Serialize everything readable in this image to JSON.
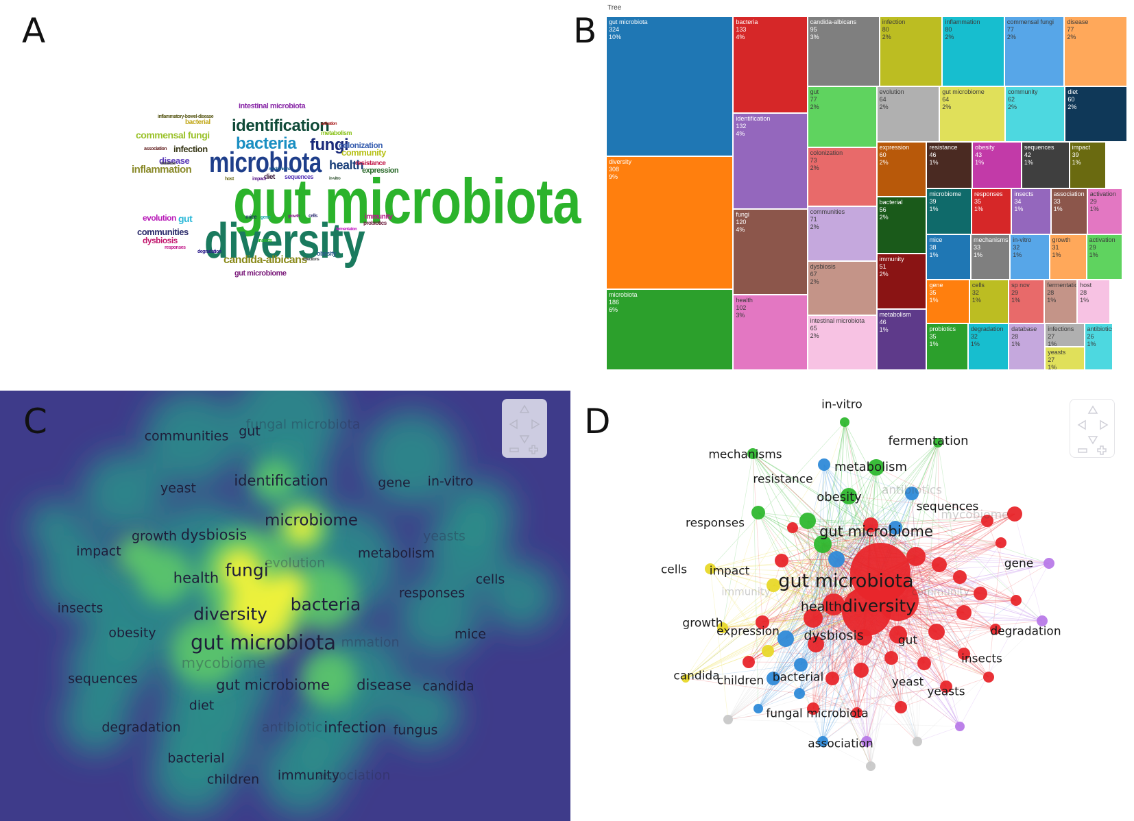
{
  "panels": {
    "a": "A",
    "b": "B",
    "c": "C",
    "d": "D"
  },
  "word_cloud": {
    "words": [
      {
        "text": "gut microbiota",
        "color": "#2bb32b"
      },
      {
        "text": "diversity",
        "color": "#1a7a5e"
      },
      {
        "text": "microbiota",
        "color": "#1e3e8a"
      },
      {
        "text": "identification",
        "color": "#0f4a38"
      },
      {
        "text": "bacteria",
        "color": "#1a8fc2"
      },
      {
        "text": "fungi",
        "color": "#1a2a7a"
      },
      {
        "text": "health",
        "color": "#1a3f7a"
      },
      {
        "text": "candida-albicans",
        "color": "#8a8a1a"
      },
      {
        "text": "intestinal microbiota",
        "color": "#8a2aa8"
      },
      {
        "text": "commensal fungi",
        "color": "#9bc22b"
      },
      {
        "text": "infection",
        "color": "#3a3a1a"
      },
      {
        "text": "colonization",
        "color": "#3a60b0"
      },
      {
        "text": "community",
        "color": "#b8c21a"
      },
      {
        "text": "disease",
        "color": "#5a3ab8"
      },
      {
        "text": "inflammation",
        "color": "#8a8a2a"
      },
      {
        "text": "communities",
        "color": "#2a2a6a"
      },
      {
        "text": "dysbiosis",
        "color": "#c2186e"
      },
      {
        "text": "evolution",
        "color": "#b81ab8"
      },
      {
        "text": "gut",
        "color": "#2ab8d8"
      },
      {
        "text": "expression",
        "color": "#2a6a2a"
      },
      {
        "text": "resistance",
        "color": "#c21a4a"
      },
      {
        "text": "gut microbiome",
        "color": "#7a1a7a"
      },
      {
        "text": "immunity",
        "color": "#b81a8a"
      },
      {
        "text": "bacterial",
        "color": "#c2a81a"
      },
      {
        "text": "diet",
        "color": "#3a1a3a"
      },
      {
        "text": "sequences",
        "color": "#5a3ab8"
      },
      {
        "text": "metabolism",
        "color": "#8ac21a"
      },
      {
        "text": "obesity",
        "color": "#2a5a8a"
      },
      {
        "text": "probiotics",
        "color": "#6a1a3a"
      },
      {
        "text": "inflammatory-bowel-disease",
        "color": "#5a5a1a"
      },
      {
        "text": "mice",
        "color": "#1a3a5a"
      },
      {
        "text": "impact",
        "color": "#5a1a8a"
      },
      {
        "text": "insects",
        "color": "#2ab82a"
      },
      {
        "text": "association",
        "color": "#6a2a2a"
      },
      {
        "text": "database",
        "color": "#3a3a3a"
      },
      {
        "text": "in-vitro",
        "color": "#3a5a3a"
      },
      {
        "text": "activation",
        "color": "#a81a1a"
      },
      {
        "text": "mechanisms",
        "color": "#1a5a8a"
      },
      {
        "text": "responses",
        "color": "#c21a8a"
      },
      {
        "text": "degradation",
        "color": "#2a1a8a"
      },
      {
        "text": "cells",
        "color": "#3a3a7a"
      },
      {
        "text": "gene",
        "color": "#1aa8a8"
      },
      {
        "text": "host",
        "color": "#6a6a1a"
      },
      {
        "text": "growth",
        "color": "#8a1a8a"
      },
      {
        "text": "infections",
        "color": "#4a4a4a"
      },
      {
        "text": "fermentation",
        "color": "#c21ac2"
      }
    ]
  },
  "treemap": {
    "title": "Tree",
    "items": [
      {
        "label": "gut microbiota",
        "count": "324",
        "pct": "10%",
        "color": "#1f77b4"
      },
      {
        "label": "diversity",
        "count": "308",
        "pct": "9%",
        "color": "#ff7f0e"
      },
      {
        "label": "microbiota",
        "count": "186",
        "pct": "6%",
        "color": "#2ca02c"
      },
      {
        "label": "bacteria",
        "count": "133",
        "pct": "4%",
        "color": "#d62728"
      },
      {
        "label": "identification",
        "count": "132",
        "pct": "4%",
        "color": "#9467bd"
      },
      {
        "label": "fungi",
        "count": "120",
        "pct": "4%",
        "color": "#8c564b"
      },
      {
        "label": "health",
        "count": "102",
        "pct": "3%",
        "color": "#e377c2"
      },
      {
        "label": "candida-albicans",
        "count": "95",
        "pct": "3%",
        "color": "#7f7f7f"
      },
      {
        "label": "infection",
        "count": "80",
        "pct": "2%",
        "color": "#bcbd22"
      },
      {
        "label": "inflammation",
        "count": "80",
        "pct": "2%",
        "color": "#17becf"
      },
      {
        "label": "commensal fungi",
        "count": "77",
        "pct": "2%",
        "color": "#57a6e8"
      },
      {
        "label": "disease",
        "count": "77",
        "pct": "2%",
        "color": "#ffa85a"
      },
      {
        "label": "gut",
        "count": "77",
        "pct": "2%",
        "color": "#5fd35f"
      },
      {
        "label": "evolution",
        "count": "64",
        "pct": "2%",
        "color": "#b0b0b0"
      },
      {
        "label": "gut microbiome",
        "count": "64",
        "pct": "2%",
        "color": "#e0e05a"
      },
      {
        "label": "community",
        "count": "62",
        "pct": "2%",
        "color": "#4dd8e0"
      },
      {
        "label": "diet",
        "count": "60",
        "pct": "2%",
        "color": "#0f3858"
      },
      {
        "label": "colonization",
        "count": "73",
        "pct": "2%",
        "color": "#e86a6a"
      },
      {
        "label": "communities",
        "count": "71",
        "pct": "2%",
        "color": "#c5a8dd"
      },
      {
        "label": "dysbiosis",
        "count": "67",
        "pct": "2%",
        "color": "#c49488"
      },
      {
        "label": "intestinal microbiota",
        "count": "65",
        "pct": "2%",
        "color": "#f7c2e3"
      },
      {
        "label": "expression",
        "count": "60",
        "pct": "2%",
        "color": "#b8590a"
      },
      {
        "label": "bacterial",
        "count": "56",
        "pct": "2%",
        "color": "#1a5a1a"
      },
      {
        "label": "immunity",
        "count": "51",
        "pct": "2%",
        "color": "#8a1414"
      },
      {
        "label": "metabolism",
        "count": "46",
        "pct": "1%",
        "color": "#5e3a8a"
      },
      {
        "label": "resistance",
        "count": "46",
        "pct": "1%",
        "color": "#4a2a22"
      },
      {
        "label": "obesity",
        "count": "43",
        "pct": "1%",
        "color": "#c23aa8"
      },
      {
        "label": "sequences",
        "count": "42",
        "pct": "1%",
        "color": "#3f3f3f"
      },
      {
        "label": "impact",
        "count": "39",
        "pct": "1%",
        "color": "#6a6a10"
      },
      {
        "label": "microbiome",
        "count": "39",
        "pct": "1%",
        "color": "#0f6a6a"
      },
      {
        "label": "responses",
        "count": "35",
        "pct": "1%",
        "color": "#d62728"
      },
      {
        "label": "insects",
        "count": "34",
        "pct": "1%",
        "color": "#9467bd"
      },
      {
        "label": "association",
        "count": "33",
        "pct": "1%",
        "color": "#8c564b"
      },
      {
        "label": "activation",
        "count": "29",
        "pct": "1%",
        "color": "#e377c2"
      },
      {
        "label": "mice",
        "count": "38",
        "pct": "1%",
        "color": "#1f77b4"
      },
      {
        "label": "mechanisms",
        "count": "33",
        "pct": "1%",
        "color": "#7f7f7f"
      },
      {
        "label": "in-vitro",
        "count": "32",
        "pct": "1%",
        "color": "#57a6e8"
      },
      {
        "label": "growth",
        "count": "31",
        "pct": "1%",
        "color": "#ffa85a"
      },
      {
        "label": "activation",
        "count": "29",
        "pct": "1%",
        "color": "#5fd35f"
      },
      {
        "label": "gene",
        "count": "35",
        "pct": "1%",
        "color": "#ff7f0e"
      },
      {
        "label": "cells",
        "count": "32",
        "pct": "1%",
        "color": "#bcbd22"
      },
      {
        "label": "sp nov",
        "count": "29",
        "pct": "1%",
        "color": "#e86a6a"
      },
      {
        "label": "fermentation",
        "count": "28",
        "pct": "1%",
        "color": "#c49488"
      },
      {
        "label": "host",
        "count": "28",
        "pct": "1%",
        "color": "#f7c2e3"
      },
      {
        "label": "probiotics",
        "count": "35",
        "pct": "1%",
        "color": "#2ca02c"
      },
      {
        "label": "degradation",
        "count": "32",
        "pct": "1%",
        "color": "#17becf"
      },
      {
        "label": "database",
        "count": "28",
        "pct": "1%",
        "color": "#c5a8dd"
      },
      {
        "label": "infections",
        "count": "27",
        "pct": "1%",
        "color": "#b0b0b0"
      },
      {
        "label": "yeasts",
        "count": "27",
        "pct": "1%",
        "color": "#e0e05a"
      },
      {
        "label": "antibiotics",
        "count": "26",
        "pct": "1%",
        "color": "#4dd8e0"
      }
    ]
  },
  "density_map": {
    "labels": [
      {
        "text": "communities",
        "faded": false
      },
      {
        "text": "gut",
        "faded": false
      },
      {
        "text": "fungal microbiota",
        "faded": true
      },
      {
        "text": "identification",
        "faded": false
      },
      {
        "text": "yeast",
        "faded": false
      },
      {
        "text": "gene",
        "faded": false
      },
      {
        "text": "in-vitro",
        "faded": false
      },
      {
        "text": "microbiome",
        "faded": false
      },
      {
        "text": "growth",
        "faded": false
      },
      {
        "text": "dysbiosis",
        "faded": false
      },
      {
        "text": "yeasts",
        "faded": true
      },
      {
        "text": "impact",
        "faded": false
      },
      {
        "text": "evolution",
        "faded": true
      },
      {
        "text": "metabolism",
        "faded": false
      },
      {
        "text": "health",
        "faded": false
      },
      {
        "text": "fungi",
        "faded": false
      },
      {
        "text": "cells",
        "faded": false
      },
      {
        "text": "responses",
        "faded": false
      },
      {
        "text": "bacteria",
        "faded": false
      },
      {
        "text": "insects",
        "faded": false
      },
      {
        "text": "diversity",
        "faded": false
      },
      {
        "text": "obesity",
        "faded": false
      },
      {
        "text": "gut microbiota",
        "faded": false
      },
      {
        "text": "mmation",
        "faded": true
      },
      {
        "text": "mice",
        "faded": false
      },
      {
        "text": "mycobiome",
        "faded": true
      },
      {
        "text": "sequences",
        "faded": false
      },
      {
        "text": "gut microbiome",
        "faded": false
      },
      {
        "text": "disease",
        "faded": false
      },
      {
        "text": "candida",
        "faded": false
      },
      {
        "text": "diet",
        "faded": false
      },
      {
        "text": "degradation",
        "faded": false
      },
      {
        "text": "antibiotic",
        "faded": true
      },
      {
        "text": "infection",
        "faded": false
      },
      {
        "text": "fungus",
        "faded": false
      },
      {
        "text": "bacterial",
        "faded": false
      },
      {
        "text": "children",
        "faded": false
      },
      {
        "text": "immunity",
        "faded": false
      },
      {
        "text": "association",
        "faded": true
      }
    ],
    "colors": {
      "background": "#3e3b8a",
      "low": "#2a8f8a",
      "mid": "#5cc86a",
      "high": "#f2f23a"
    }
  },
  "network": {
    "clusters": {
      "red": "#e8262b",
      "green": "#2fb82f",
      "blue": "#2f8ad8",
      "yellow": "#e8d82a",
      "purple": "#b87ae8",
      "gray": "#c8c8c8"
    },
    "labels": [
      {
        "text": "in-vitro",
        "faded": false
      },
      {
        "text": "fermentation",
        "faded": false
      },
      {
        "text": "mechanisms",
        "faded": false
      },
      {
        "text": "metabolism",
        "faded": false
      },
      {
        "text": "resistance",
        "faded": false
      },
      {
        "text": "antibiotics",
        "faded": true
      },
      {
        "text": "obesity",
        "faded": false
      },
      {
        "text": "sequences",
        "faded": false
      },
      {
        "text": "responses",
        "faded": false
      },
      {
        "text": "gut microbiome",
        "faded": false
      },
      {
        "text": "mycobiome",
        "faded": true
      },
      {
        "text": "cells",
        "faded": false
      },
      {
        "text": "impact",
        "faded": false
      },
      {
        "text": "gene",
        "faded": false
      },
      {
        "text": "gut microbiota",
        "faded": false
      },
      {
        "text": "immunity",
        "faded": true
      },
      {
        "text": "community",
        "faded": true
      },
      {
        "text": "health",
        "faded": false
      },
      {
        "text": "diversity",
        "faded": false
      },
      {
        "text": "growth",
        "faded": false
      },
      {
        "text": "expression",
        "faded": false
      },
      {
        "text": "dysbiosis",
        "faded": false
      },
      {
        "text": "gut",
        "faded": false
      },
      {
        "text": "degradation",
        "faded": false
      },
      {
        "text": "insects",
        "faded": false
      },
      {
        "text": "candida",
        "faded": false
      },
      {
        "text": "children",
        "faded": false
      },
      {
        "text": "bacterial",
        "faded": false
      },
      {
        "text": "yeast",
        "faded": false
      },
      {
        "text": "yeasts",
        "faded": false
      },
      {
        "text": "fungal microbiota",
        "faded": false
      },
      {
        "text": "association",
        "faded": false
      }
    ]
  }
}
